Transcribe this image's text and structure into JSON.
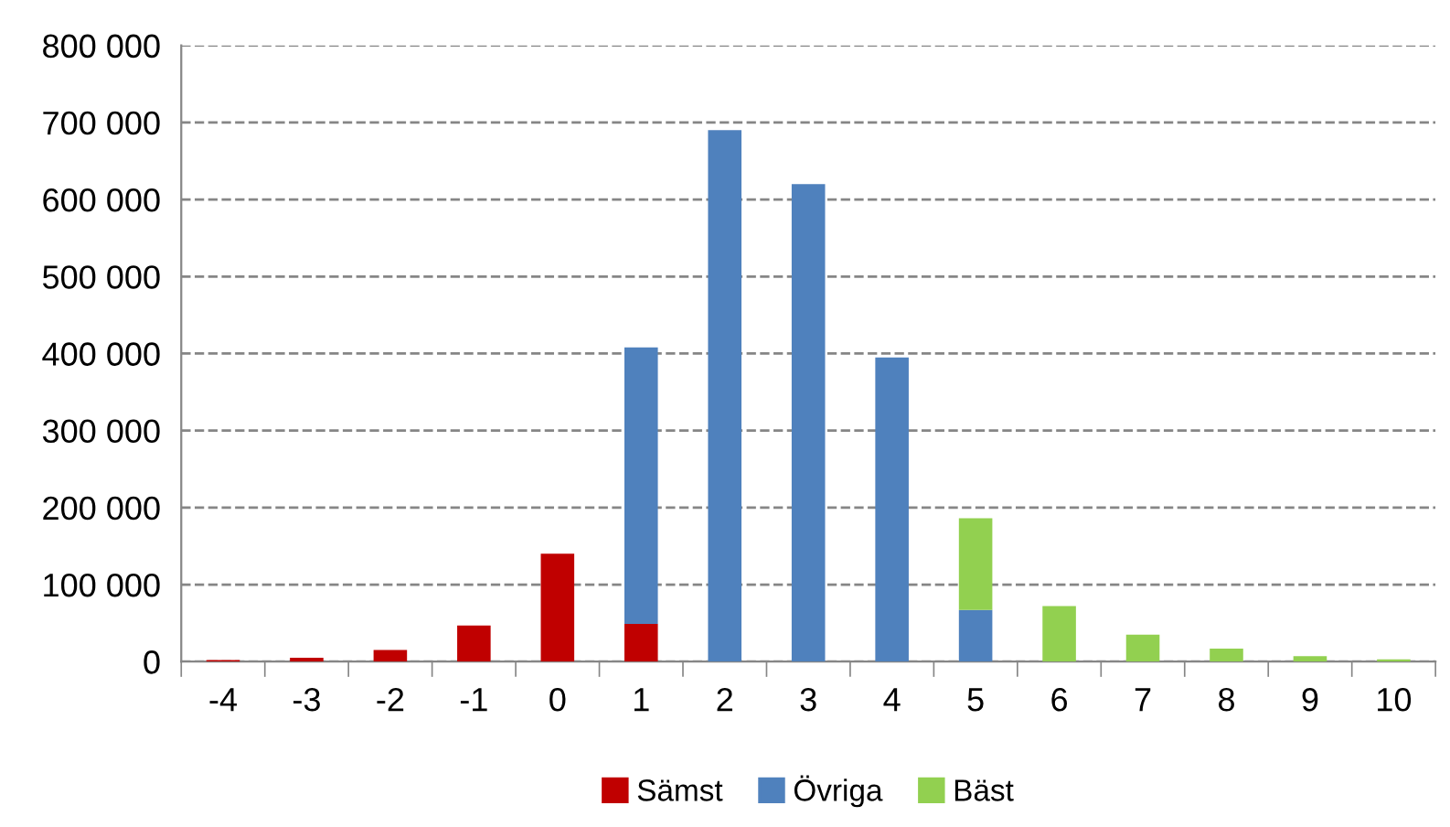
{
  "chart_data": {
    "type": "bar",
    "stacked": true,
    "categories": [
      "-4",
      "-3",
      "-2",
      "-1",
      "0",
      "1",
      "2",
      "3",
      "4",
      "5",
      "6",
      "7",
      "8",
      "9",
      "10"
    ],
    "series": [
      {
        "name": "Sämst",
        "color": "#c00000",
        "values": [
          2000,
          5000,
          15000,
          47000,
          140000,
          49000,
          0,
          0,
          0,
          0,
          0,
          0,
          0,
          0,
          0
        ]
      },
      {
        "name": "Övriga",
        "color": "#4f81bd",
        "values": [
          0,
          0,
          0,
          0,
          0,
          359000,
          690000,
          620000,
          395000,
          67000,
          0,
          0,
          0,
          0,
          0
        ]
      },
      {
        "name": "Bäst",
        "color": "#92d050",
        "values": [
          0,
          0,
          0,
          0,
          0,
          0,
          0,
          0,
          0,
          119000,
          72000,
          35000,
          17000,
          7000,
          3000
        ]
      }
    ],
    "ylim": [
      0,
      800000
    ],
    "yticks": [
      {
        "value": 0,
        "label": "0"
      },
      {
        "value": 100000,
        "label": "100 000"
      },
      {
        "value": 200000,
        "label": "200 000"
      },
      {
        "value": 300000,
        "label": "300 000"
      },
      {
        "value": 400000,
        "label": "400 000"
      },
      {
        "value": 500000,
        "label": "500 000"
      },
      {
        "value": 600000,
        "label": "600 000"
      },
      {
        "value": 700000,
        "label": "700 000"
      },
      {
        "value": 800000,
        "label": "800 000"
      }
    ],
    "grid": "y",
    "legend": "bottom"
  }
}
